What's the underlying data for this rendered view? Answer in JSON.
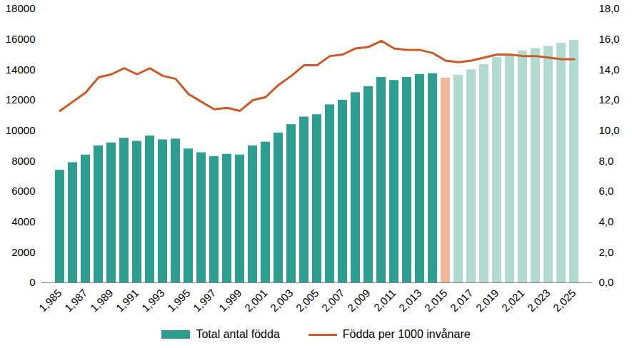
{
  "chart_data": {
    "type": "bar",
    "categories": [
      1985,
      null,
      1987,
      null,
      1989,
      null,
      1991,
      null,
      1993,
      null,
      1995,
      null,
      1997,
      null,
      1999,
      null,
      2001,
      null,
      2003,
      null,
      2005,
      null,
      2007,
      null,
      2009,
      null,
      2011,
      null,
      2013,
      null,
      2015,
      null,
      2017,
      null,
      2019,
      null,
      2021,
      null,
      2023,
      null,
      2025
    ],
    "series": [
      {
        "name": "Total antal födda",
        "type": "bar",
        "color": "#2e9e90",
        "colors": [
          "#2e9e90",
          "#2e9e90",
          "#2e9e90",
          "#2e9e90",
          "#2e9e90",
          "#2e9e90",
          "#2e9e90",
          "#2e9e90",
          "#2e9e90",
          "#2e9e90",
          "#2e9e90",
          "#2e9e90",
          "#2e9e90",
          "#2e9e90",
          "#2e9e90",
          "#2e9e90",
          "#2e9e90",
          "#2e9e90",
          "#2e9e90",
          "#2e9e90",
          "#2e9e90",
          "#2e9e90",
          "#2e9e90",
          "#2e9e90",
          "#2e9e90",
          "#2e9e90",
          "#2e9e90",
          "#2e9e90",
          "#2e9e90",
          "#2e9e90",
          "#f2b89c",
          "#b3d9d3",
          "#b3d9d3",
          "#b3d9d3",
          "#b3d9d3",
          "#b3d9d3",
          "#b3d9d3",
          "#b3d9d3",
          "#b3d9d3",
          "#b3d9d3",
          "#b3d9d3"
        ],
        "values": [
          7400,
          7900,
          8400,
          9000,
          9200,
          9500,
          9300,
          9650,
          9400,
          9450,
          8800,
          8550,
          8300,
          8450,
          8400,
          9000,
          9250,
          9850,
          10400,
          10900,
          11050,
          11700,
          12000,
          12500,
          12900,
          13500,
          13300,
          13500,
          13700,
          13750,
          13450,
          13650,
          14000,
          14350,
          14800,
          15000,
          15250,
          15400,
          15550,
          15750,
          15950
        ]
      },
      {
        "name": "Födda per 1000 invånare",
        "type": "line",
        "axis": "y2",
        "color": "#cc5a26",
        "values": [
          11.3,
          11.9,
          12.5,
          13.5,
          13.7,
          14.1,
          13.7,
          14.1,
          13.6,
          13.4,
          12.4,
          11.9,
          11.4,
          11.5,
          11.3,
          12.0,
          12.2,
          13.0,
          13.6,
          14.3,
          14.3,
          14.9,
          15.0,
          15.4,
          15.5,
          15.9,
          15.4,
          15.3,
          15.3,
          15.1,
          14.6,
          14.5,
          14.6,
          14.8,
          15.0,
          15.0,
          14.9,
          14.9,
          14.8,
          14.7,
          14.7
        ]
      }
    ],
    "ylim": [
      0,
      18000
    ],
    "yticks": [
      0,
      2000,
      4000,
      6000,
      8000,
      10000,
      12000,
      14000,
      16000,
      18000
    ],
    "y2lim": [
      0,
      18
    ],
    "y2ticks": [
      {
        "value": 0,
        "label": "0,0"
      },
      {
        "value": 2,
        "label": "2,0"
      },
      {
        "value": 4,
        "label": "4,0"
      },
      {
        "value": 6,
        "label": "6,0"
      },
      {
        "value": 8,
        "label": "8,0"
      },
      {
        "value": 10,
        "label": "10,0"
      },
      {
        "value": 12,
        "label": "12,0"
      },
      {
        "value": 14,
        "label": "14,0"
      },
      {
        "value": 16,
        "label": "16,0"
      },
      {
        "value": 18,
        "label": "18,0"
      }
    ],
    "grid": false,
    "legend": "bottom"
  }
}
